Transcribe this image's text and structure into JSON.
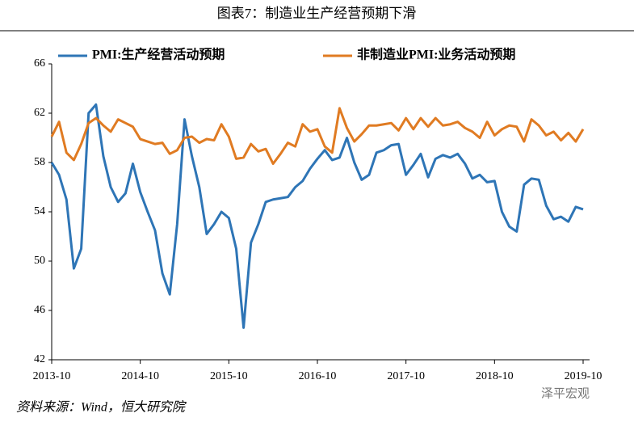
{
  "chart_data": {
    "type": "line",
    "title": "图表7：制造业生产经营预期下滑",
    "source": "资料来源：Wind，恒大研究院",
    "watermark": "泽平宏观",
    "categories": [
      "2013-10",
      null,
      null,
      null,
      null,
      null,
      null,
      null,
      null,
      null,
      null,
      null,
      "2014-10",
      null,
      null,
      null,
      null,
      null,
      null,
      null,
      null,
      null,
      null,
      null,
      "2015-10",
      null,
      null,
      null,
      null,
      null,
      null,
      null,
      null,
      null,
      null,
      null,
      "2016-10",
      null,
      null,
      null,
      null,
      null,
      null,
      null,
      null,
      null,
      null,
      null,
      "2017-10",
      null,
      null,
      null,
      null,
      null,
      null,
      null,
      null,
      null,
      null,
      null,
      "2018-10",
      null,
      null,
      null,
      null,
      null,
      null,
      null,
      null,
      null,
      null,
      null,
      "2019-10"
    ],
    "series": [
      {
        "name": "PMI:生产经营活动预期",
        "color": "#2e75b6",
        "values": [
          58.0,
          57.0,
          55.0,
          49.4,
          51.0,
          62.0,
          62.7,
          58.5,
          56.0,
          54.8,
          55.5,
          57.9,
          55.6,
          54.0,
          52.5,
          49.0,
          47.3,
          53.0,
          61.5,
          58.5,
          56.0,
          52.2,
          53.0,
          54.0,
          53.5,
          51.0,
          44.6,
          51.5,
          53.0,
          54.8,
          55.0,
          55.1,
          55.2,
          56.0,
          56.5,
          57.5,
          58.3,
          59.0,
          58.2,
          58.4,
          60.0,
          58.0,
          56.6,
          57.0,
          58.8,
          59.0,
          59.4,
          59.5,
          57.0,
          57.8,
          58.7,
          56.8,
          58.3,
          58.6,
          58.4,
          58.7,
          57.9,
          56.7,
          57.0,
          56.4,
          56.5,
          54.0,
          52.8,
          52.4,
          56.2,
          56.7,
          56.6,
          54.5,
          53.4,
          53.6,
          53.2,
          54.4,
          54.2
        ]
      },
      {
        "name": "非制造业PMI:业务活动预期",
        "color": "#e07b22",
        "values": [
          60.1,
          61.3,
          58.8,
          58.2,
          59.5,
          61.2,
          61.6,
          61.0,
          60.5,
          61.5,
          61.2,
          60.9,
          59.9,
          59.7,
          59.5,
          59.6,
          58.7,
          59.0,
          60.0,
          60.1,
          59.6,
          59.9,
          59.8,
          61.1,
          60.1,
          58.3,
          58.4,
          59.5,
          58.9,
          59.1,
          57.9,
          58.7,
          59.6,
          59.3,
          61.1,
          60.5,
          60.7,
          59.3,
          58.8,
          62.4,
          60.8,
          59.7,
          60.3,
          61.0,
          61.0,
          61.1,
          61.2,
          60.6,
          61.6,
          60.7,
          61.6,
          60.9,
          61.6,
          61.0,
          61.1,
          61.3,
          60.8,
          60.5,
          60.0,
          61.3,
          60.2,
          60.7,
          61.0,
          60.9,
          59.7,
          61.5,
          61.0,
          60.2,
          60.5,
          59.8,
          60.4,
          59.7,
          60.7
        ]
      }
    ],
    "ylim": [
      42,
      66
    ],
    "yticks": [
      42,
      46,
      50,
      54,
      58,
      62,
      66
    ],
    "grid": false,
    "legend": "top"
  }
}
